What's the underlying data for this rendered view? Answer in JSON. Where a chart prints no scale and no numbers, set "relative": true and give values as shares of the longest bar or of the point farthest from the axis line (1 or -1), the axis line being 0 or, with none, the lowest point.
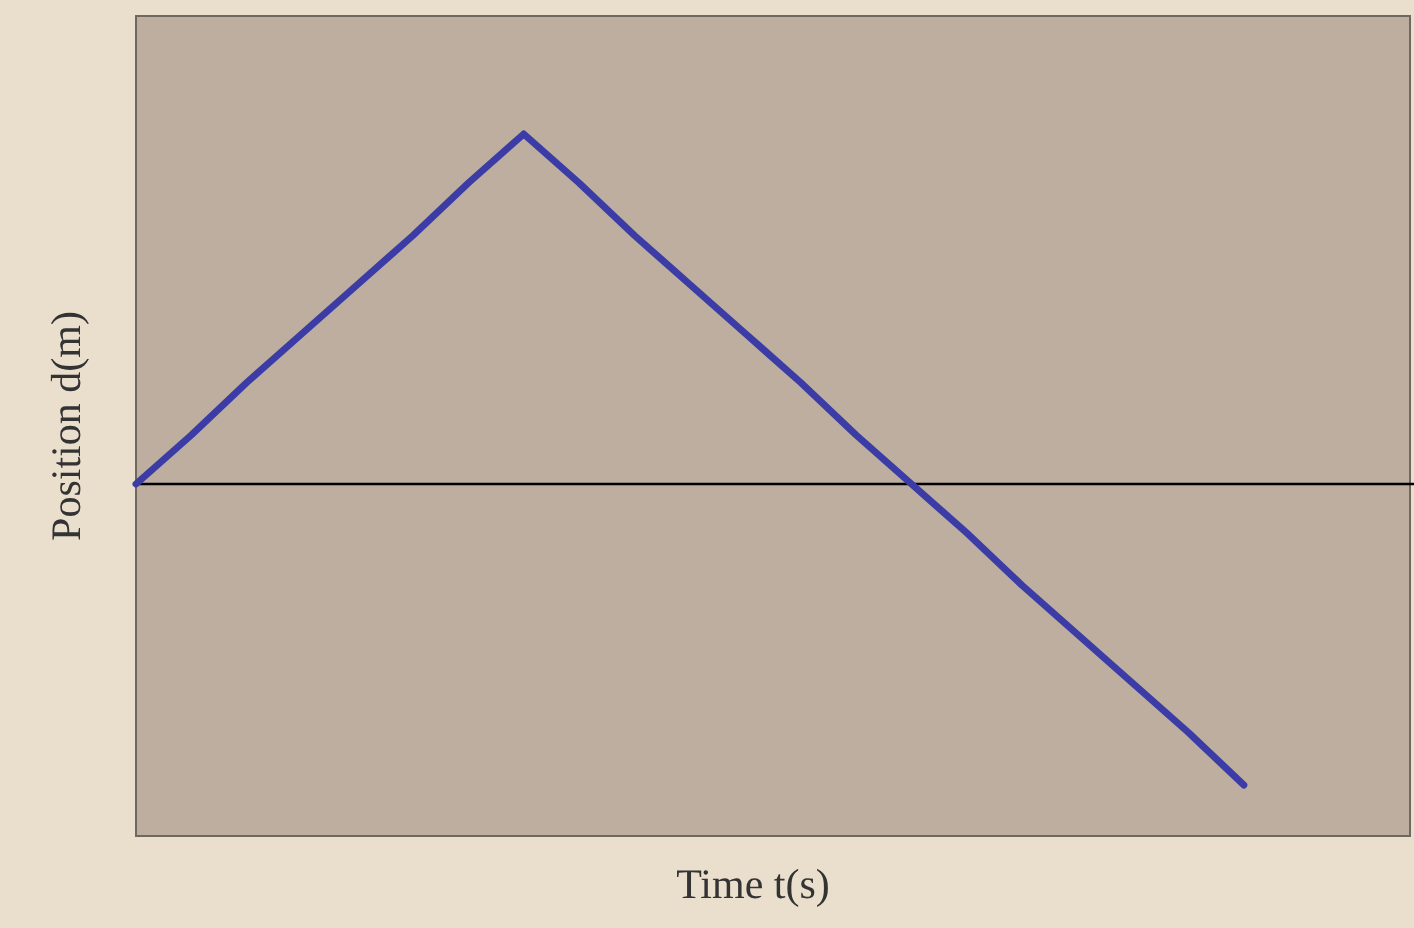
{
  "chart_data": {
    "type": "line",
    "relative": true,
    "xlabel": "Time t(s)",
    "ylabel": "Position d(m)",
    "categories": [
      null,
      null,
      null,
      null,
      null,
      null,
      null,
      null,
      null,
      null,
      null,
      null,
      null,
      null,
      null,
      null,
      null,
      null,
      null,
      null,
      null,
      null,
      null,
      null
    ],
    "series": [
      {
        "color": "#3c3ca6",
        "values": [
          0,
          0.14,
          0.29,
          0.43,
          0.57,
          0.71,
          0.86,
          1,
          0.86,
          0.71,
          0.57,
          0.43,
          0.29,
          0.14,
          0,
          -0.14,
          -0.29,
          -0.43,
          -0.57,
          -0.71,
          -0.86,
          null,
          null,
          null
        ]
      }
    ]
  }
}
